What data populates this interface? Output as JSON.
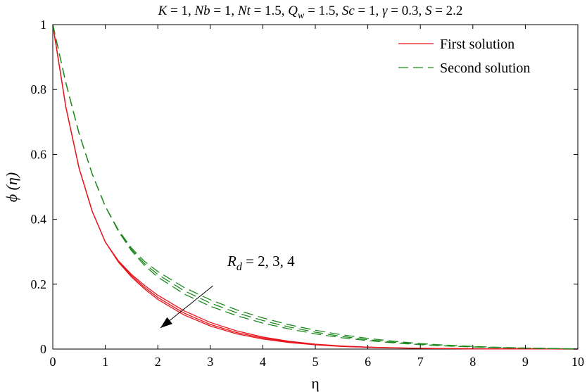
{
  "chart_data": {
    "type": "line",
    "title": "K = 1, Nb = 1, Nt = 1.5, Q_w = 1.5, Sc = 1, γ = 0.3, S = 2.2",
    "title_parts": [
      {
        "t": "K",
        "style": "italic"
      },
      {
        "t": " = 1, ",
        "style": "normal"
      },
      {
        "t": "Nb",
        "style": "italic"
      },
      {
        "t": " = 1, ",
        "style": "normal"
      },
      {
        "t": "Nt",
        "style": "italic"
      },
      {
        "t": " = 1.5, ",
        "style": "normal"
      },
      {
        "t": "Q",
        "style": "italic"
      },
      {
        "t": "w",
        "style": "italic-sub"
      },
      {
        "t": " = 1.5, ",
        "style": "normal"
      },
      {
        "t": "Sc",
        "style": "italic"
      },
      {
        "t": " = 1, ",
        "style": "normal"
      },
      {
        "t": "γ",
        "style": "italic"
      },
      {
        "t": " = 0.3, ",
        "style": "normal"
      },
      {
        "t": "S",
        "style": "italic"
      },
      {
        "t": " = 2.2",
        "style": "normal"
      }
    ],
    "xlabel": "η",
    "ylabel": "ϕ (η)",
    "xlim": [
      0,
      10
    ],
    "ylim": [
      0,
      1
    ],
    "xticks": [
      "0",
      "1",
      "2",
      "3",
      "4",
      "5",
      "6",
      "7",
      "8",
      "9",
      "10"
    ],
    "yticks": [
      "0",
      "0.2",
      "0.4",
      "0.6",
      "0.8",
      "1"
    ],
    "grid": false,
    "legend": {
      "placement": "top-right",
      "entries": [
        {
          "label": "First solution",
          "color": "#e8141c",
          "dash": "solid"
        },
        {
          "label": "Second solution",
          "color": "#1e8a1e",
          "dash": "dashed"
        }
      ]
    },
    "annotation": {
      "parts": [
        {
          "t": "R",
          "style": "italic"
        },
        {
          "t": "d",
          "style": "italic-sub"
        },
        {
          "t": " = 2, 3, 4",
          "style": "normal"
        }
      ],
      "text": "R_d = 2, 3, 4",
      "arrow": {
        "from": [
          3.05,
          0.195
        ],
        "to": [
          2.05,
          0.065
        ]
      }
    },
    "x": [
      0,
      0.25,
      0.5,
      0.75,
      1,
      1.25,
      1.5,
      1.75,
      2,
      2.5,
      3,
      3.5,
      4,
      4.5,
      5,
      5.5,
      6,
      6.5,
      7,
      7.5,
      8,
      8.5,
      9,
      9.5,
      10
    ],
    "series": [
      {
        "group": "First solution",
        "color": "#e8141c",
        "dash": "solid",
        "values": [
          1.0,
          0.745,
          0.558,
          0.425,
          0.33,
          0.268,
          0.222,
          0.185,
          0.153,
          0.105,
          0.071,
          0.047,
          0.031,
          0.02,
          0.013,
          0.008,
          0.0055,
          0.0035,
          0.0022,
          0.0014,
          0.0009,
          0.0006,
          0.0004,
          0.0002,
          0.0001
        ]
      },
      {
        "group": "First solution",
        "color": "#e8141c",
        "dash": "solid",
        "values": [
          1.0,
          0.745,
          0.558,
          0.425,
          0.33,
          0.27,
          0.226,
          0.19,
          0.159,
          0.111,
          0.076,
          0.051,
          0.034,
          0.022,
          0.014,
          0.009,
          0.006,
          0.004,
          0.0025,
          0.0016,
          0.001,
          0.0006,
          0.0004,
          0.0002,
          0.0001
        ]
      },
      {
        "group": "First solution",
        "color": "#e8141c",
        "dash": "solid",
        "values": [
          1.0,
          0.745,
          0.558,
          0.425,
          0.33,
          0.272,
          0.23,
          0.196,
          0.166,
          0.118,
          0.082,
          0.056,
          0.037,
          0.024,
          0.015,
          0.0095,
          0.006,
          0.0038,
          0.0024,
          0.0015,
          0.0009,
          0.0006,
          0.0004,
          0.0002,
          0.0001
        ]
      },
      {
        "group": "Second solution",
        "color": "#1e8a1e",
        "dash": "dashed",
        "values": [
          1.0,
          0.82,
          0.665,
          0.54,
          0.44,
          0.363,
          0.303,
          0.257,
          0.222,
          0.17,
          0.132,
          0.103,
          0.08,
          0.062,
          0.047,
          0.035,
          0.026,
          0.019,
          0.0135,
          0.0095,
          0.0065,
          0.0044,
          0.0028,
          0.0016,
          0.0005
        ]
      },
      {
        "group": "Second solution",
        "color": "#1e8a1e",
        "dash": "dashed",
        "values": [
          1.0,
          0.82,
          0.665,
          0.54,
          0.44,
          0.365,
          0.307,
          0.263,
          0.23,
          0.18,
          0.142,
          0.112,
          0.088,
          0.068,
          0.052,
          0.039,
          0.029,
          0.021,
          0.015,
          0.0105,
          0.0072,
          0.0048,
          0.003,
          0.0017,
          0.0005
        ]
      },
      {
        "group": "Second solution",
        "color": "#1e8a1e",
        "dash": "dashed",
        "values": [
          1.0,
          0.82,
          0.665,
          0.54,
          0.44,
          0.367,
          0.311,
          0.27,
          0.239,
          0.19,
          0.152,
          0.121,
          0.096,
          0.075,
          0.058,
          0.044,
          0.033,
          0.024,
          0.017,
          0.012,
          0.0082,
          0.0054,
          0.0033,
          0.0018,
          0.0005
        ]
      }
    ]
  }
}
